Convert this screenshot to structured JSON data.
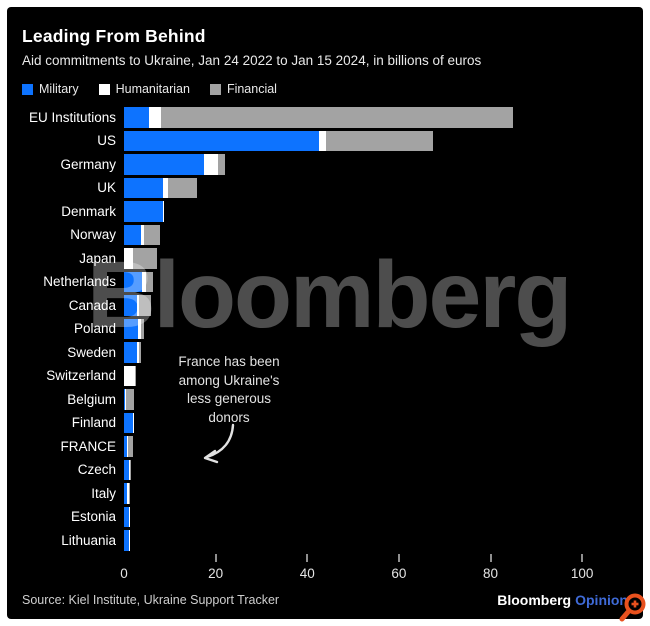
{
  "header": {
    "title": "Leading From Behind",
    "subtitle": "Aid commitments to Ukraine, Jan 24 2022 to Jan 15 2024, in billions of euros"
  },
  "legend": [
    {
      "label": "Military",
      "color": "#0d73ff"
    },
    {
      "label": "Humanitarian",
      "color": "#ffffff"
    },
    {
      "label": "Financial",
      "color": "#a3a3a3"
    }
  ],
  "chart_data": {
    "type": "bar",
    "orientation": "horizontal",
    "stacked": true,
    "title": "Leading From Behind",
    "subtitle": "Aid commitments to Ukraine, Jan 24 2022 to Jan 15 2024, in billions of euros",
    "unit": "billions of euros",
    "xlim": [
      0,
      110
    ],
    "x_ticks": [
      0,
      20,
      40,
      60,
      80,
      100
    ],
    "grid": false,
    "legend_position": "top",
    "categories": [
      "EU Institutions",
      "US",
      "Germany",
      "UK",
      "Denmark",
      "Norway",
      "Japan",
      "Netherlands",
      "Canada",
      "Poland",
      "Sweden",
      "Switzerland",
      "Belgium",
      "Finland",
      "FRANCE",
      "Czech",
      "Italy",
      "Estonia",
      "Lithuania"
    ],
    "series": [
      {
        "name": "Military",
        "color": "#0d73ff",
        "values": [
          5.5,
          42.5,
          17.5,
          8.5,
          8.5,
          3.8,
          0,
          4.0,
          2.8,
          3.0,
          2.8,
          0,
          0.3,
          1.9,
          0.6,
          1.2,
          0.7,
          1.0,
          1.0
        ]
      },
      {
        "name": "Humanitarian",
        "color": "#ffffff",
        "values": [
          2.5,
          1.5,
          3.0,
          1.0,
          0.3,
          0.6,
          2.0,
          0.8,
          0.5,
          0.8,
          0.5,
          2.3,
          0.1,
          0.3,
          0.3,
          0.1,
          0.3,
          0.3,
          0.1
        ]
      },
      {
        "name": "Financial",
        "color": "#a3a3a3",
        "values": [
          77.0,
          23.5,
          1.5,
          6.5,
          0,
          3.4,
          5.3,
          1.5,
          2.7,
          0.5,
          0.4,
          0.1,
          1.7,
          0,
          1.0,
          0.2,
          0.4,
          0,
          0
        ]
      }
    ],
    "annotation": {
      "text": "France has been among Ukraine's less generous donors",
      "target": "FRANCE"
    }
  },
  "annotation_text": "France has been among Ukraine's less generous donors",
  "watermark": "Bloomberg",
  "footer": {
    "source": "Source: Kiel Institute, Ukraine Support Tracker",
    "brand": "Bloomberg",
    "brand_suffix": "Opinion"
  }
}
